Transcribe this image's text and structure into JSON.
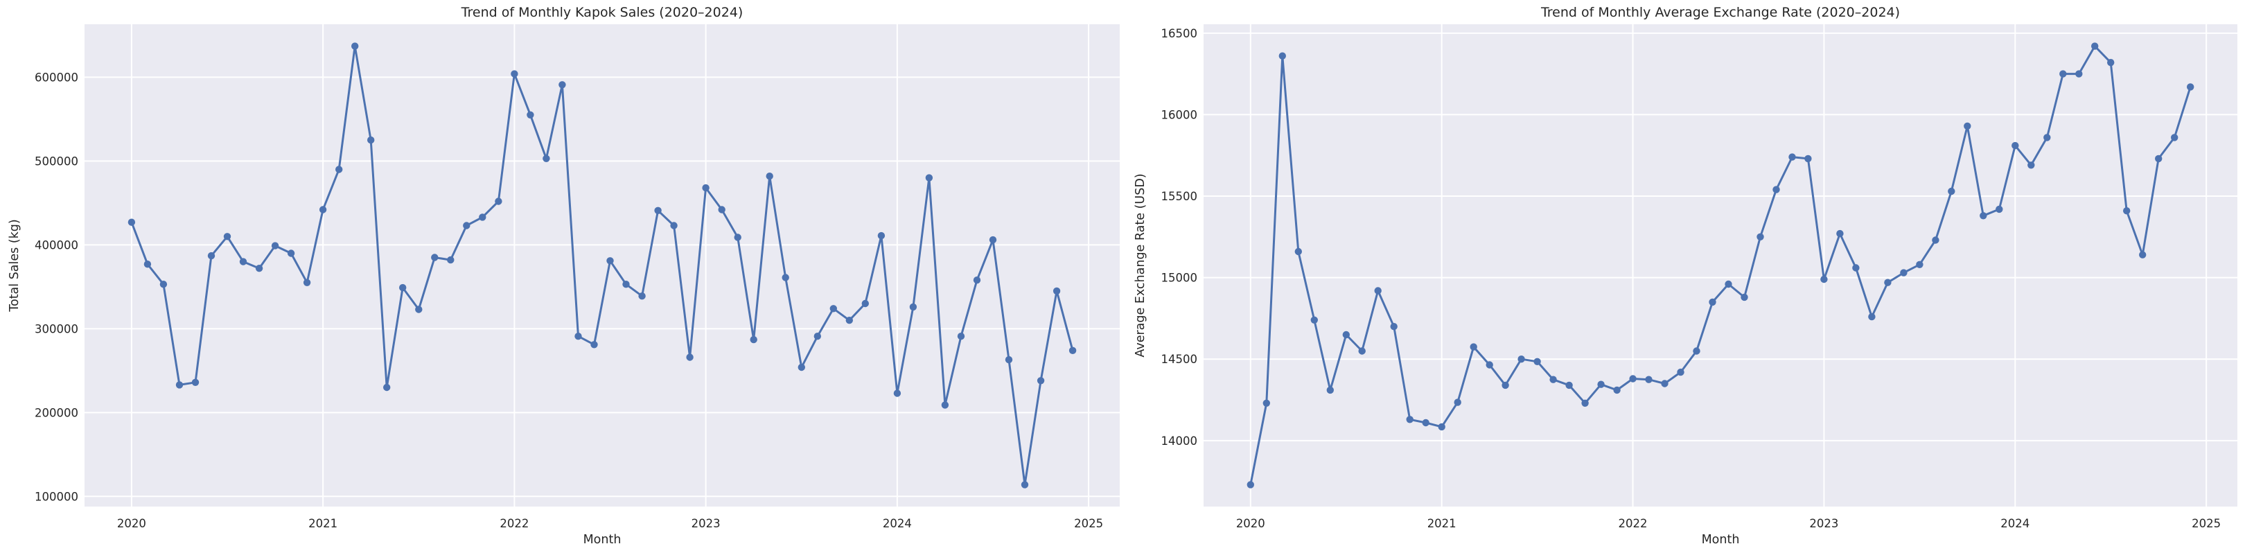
{
  "figure": {
    "background": "#ffffff",
    "axes_background": "#eaeaf2",
    "grid_color": "#ffffff",
    "line_color": "#4c72b0",
    "marker_color": "#4c72b0",
    "text_color": "#262626"
  },
  "chart_data": [
    {
      "type": "line",
      "title": "Trend of Monthly Kapok Sales (2020–2024)",
      "xlabel": "Month",
      "ylabel": "Total Sales (kg)",
      "grid": true,
      "legend": "none",
      "marker": "circle",
      "x_tick_labels": [
        "2020",
        "2021",
        "2022",
        "2023",
        "2024",
        "2025"
      ],
      "x_tick_indices": [
        0,
        12,
        24,
        36,
        48,
        60
      ],
      "y_ticks": [
        100000,
        200000,
        300000,
        400000,
        500000,
        600000
      ],
      "y_tick_labels": [
        "100000",
        "200000",
        "300000",
        "400000",
        "500000",
        "600000"
      ],
      "x": [
        "2020-01",
        "2020-02",
        "2020-03",
        "2020-04",
        "2020-05",
        "2020-06",
        "2020-07",
        "2020-08",
        "2020-09",
        "2020-10",
        "2020-11",
        "2020-12",
        "2021-01",
        "2021-02",
        "2021-03",
        "2021-04",
        "2021-05",
        "2021-06",
        "2021-07",
        "2021-08",
        "2021-09",
        "2021-10",
        "2021-11",
        "2021-12",
        "2022-01",
        "2022-02",
        "2022-03",
        "2022-04",
        "2022-05",
        "2022-06",
        "2022-07",
        "2022-08",
        "2022-09",
        "2022-10",
        "2022-11",
        "2022-12",
        "2023-01",
        "2023-02",
        "2023-03",
        "2023-04",
        "2023-05",
        "2023-06",
        "2023-07",
        "2023-08",
        "2023-09",
        "2023-10",
        "2023-11",
        "2023-12",
        "2024-01",
        "2024-02",
        "2024-03",
        "2024-04",
        "2024-05",
        "2024-06",
        "2024-07",
        "2024-08",
        "2024-09",
        "2024-10",
        "2024-11",
        "2024-12"
      ],
      "values": [
        427000,
        377000,
        353000,
        233000,
        236000,
        387000,
        410000,
        380000,
        372000,
        399000,
        390000,
        355000,
        442000,
        490000,
        637000,
        525000,
        230000,
        349000,
        323000,
        385000,
        382000,
        423000,
        433000,
        452000,
        604000,
        555000,
        503000,
        591000,
        291000,
        281000,
        381000,
        353000,
        339000,
        441000,
        423000,
        266000,
        468000,
        442000,
        409000,
        287000,
        482000,
        361000,
        254000,
        291000,
        324000,
        310000,
        330000,
        411000,
        223000,
        326000,
        480000,
        209000,
        291000,
        358000,
        406000,
        263000,
        114000,
        238000,
        345000,
        274000
      ]
    },
    {
      "type": "line",
      "title": "Trend of Monthly Average Exchange Rate (2020–2024)",
      "xlabel": "Month",
      "ylabel": "Average Exchange Rate (USD)",
      "grid": true,
      "legend": "none",
      "marker": "circle",
      "x_tick_labels": [
        "2020",
        "2021",
        "2022",
        "2023",
        "2024",
        "2025"
      ],
      "x_tick_indices": [
        0,
        12,
        24,
        36,
        48,
        60
      ],
      "y_ticks": [
        14000,
        14500,
        15000,
        15500,
        16000,
        16500
      ],
      "y_tick_labels": [
        "14000",
        "14500",
        "15000",
        "15500",
        "16000",
        "16500"
      ],
      "x": [
        "2020-01",
        "2020-02",
        "2020-03",
        "2020-04",
        "2020-05",
        "2020-06",
        "2020-07",
        "2020-08",
        "2020-09",
        "2020-10",
        "2020-11",
        "2020-12",
        "2021-01",
        "2021-02",
        "2021-03",
        "2021-04",
        "2021-05",
        "2021-06",
        "2021-07",
        "2021-08",
        "2021-09",
        "2021-10",
        "2021-11",
        "2021-12",
        "2022-01",
        "2022-02",
        "2022-03",
        "2022-04",
        "2022-05",
        "2022-06",
        "2022-07",
        "2022-08",
        "2022-09",
        "2022-10",
        "2022-11",
        "2022-12",
        "2023-01",
        "2023-02",
        "2023-03",
        "2023-04",
        "2023-05",
        "2023-06",
        "2023-07",
        "2023-08",
        "2023-09",
        "2023-10",
        "2023-11",
        "2023-12",
        "2024-01",
        "2024-02",
        "2024-03",
        "2024-04",
        "2024-05",
        "2024-06",
        "2024-07",
        "2024-08",
        "2024-09",
        "2024-10",
        "2024-11",
        "2024-12"
      ],
      "values": [
        13730,
        14230,
        16360,
        15160,
        14740,
        14310,
        14650,
        14550,
        14920,
        14700,
        14130,
        14110,
        14085,
        14235,
        14575,
        14465,
        14340,
        14500,
        14485,
        14375,
        14340,
        14230,
        14345,
        14310,
        14380,
        14375,
        14350,
        14420,
        14550,
        14850,
        14960,
        14880,
        15250,
        15540,
        15740,
        15730,
        14990,
        15270,
        15060,
        14760,
        14970,
        15030,
        15080,
        15230,
        15530,
        15930,
        15380,
        15420,
        15810,
        15690,
        15860,
        16250,
        16250,
        16420,
        16320,
        15410,
        15140,
        15730,
        15860,
        16170
      ]
    }
  ]
}
